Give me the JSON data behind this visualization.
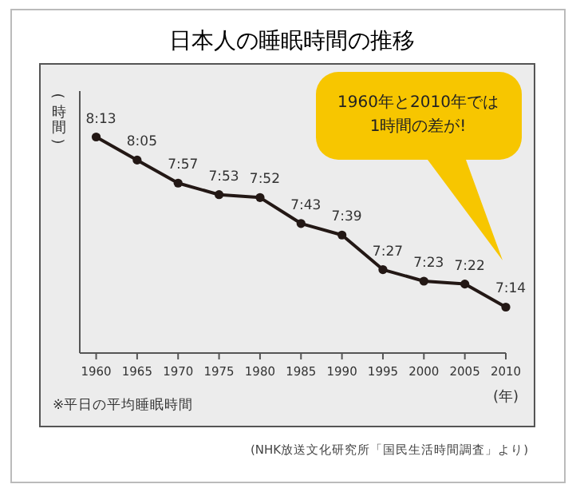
{
  "chart_data": {
    "type": "line",
    "title": "日本人の睡眠時間の推移",
    "ylabel": "(時間)",
    "xlabel": "(年)",
    "x": [
      1960,
      1965,
      1970,
      1975,
      1980,
      1985,
      1990,
      1995,
      2000,
      2005,
      2010
    ],
    "xlim": [
      1958,
      2010
    ],
    "xticks": [
      1960,
      1965,
      1970,
      1975,
      1980,
      1985,
      1990,
      1995,
      2000,
      2005,
      2010
    ],
    "series": [
      {
        "color": "#231815",
        "values": [
          493,
          485,
          477,
          473,
          472,
          463,
          459,
          447,
          443,
          442,
          434
        ],
        "value_labels": [
          "8:13",
          "8:05",
          "7:57",
          "7:53",
          "7:52",
          "7:43",
          "7:39",
          "7:27",
          "7:23",
          "7:22",
          "7:14"
        ]
      }
    ],
    "marker": "circle",
    "line_style": "solid",
    "annotations": [
      "1960年と2010年では\n1時間の差が!",
      "※平日の平均睡眠時間",
      "(NHK放送文化研究所「国民生活時間調査」より)"
    ]
  }
}
